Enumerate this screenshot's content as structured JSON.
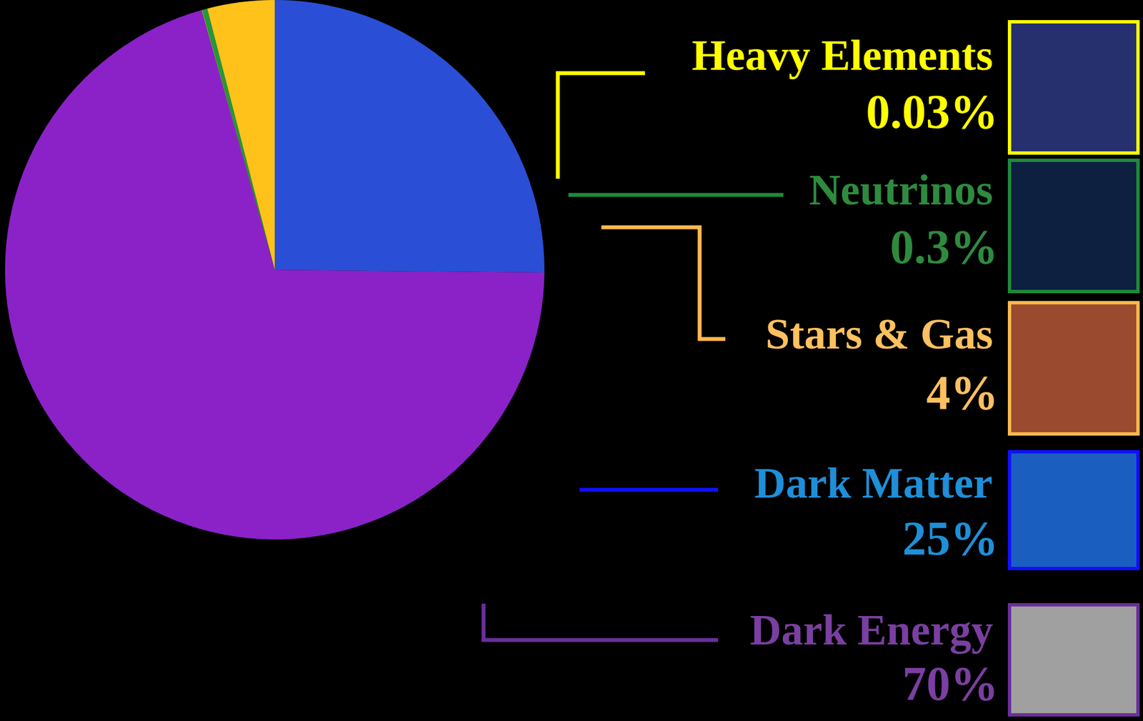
{
  "chart_data": {
    "type": "pie",
    "categories": [
      "Dark Matter",
      "Dark Energy",
      "Heavy Elements",
      "Neutrinos",
      "Stars & Gas"
    ],
    "values": [
      25,
      70,
      0.03,
      0.3,
      4
    ],
    "value_labels": [
      "25%",
      "70%",
      "0.03%",
      "0.3%",
      "4%"
    ],
    "colors": [
      "#2a4fd6",
      "#8a22c8",
      "#f2f200",
      "#1e9a3c",
      "#ffc21a"
    ],
    "data_labels": true,
    "legend": false
  }
}
